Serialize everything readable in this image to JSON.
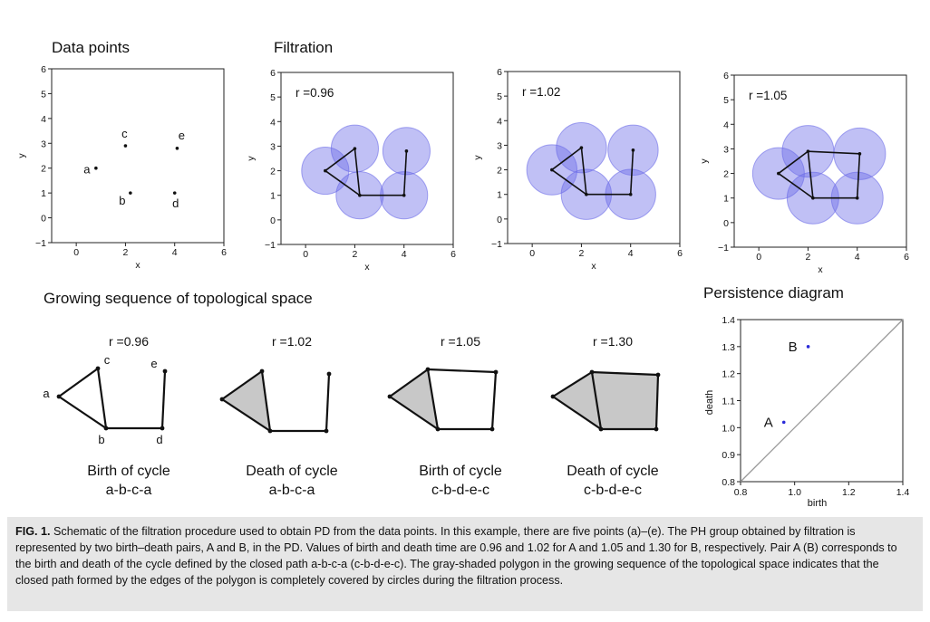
{
  "panels": {
    "data_points_title": "Data points",
    "filtration_title": "Filtration",
    "sequence_title": "Growing sequence of topological space",
    "persistence_title": "Persistence diagram"
  },
  "filtration_labels": [
    "r =0.96",
    "r =1.02",
    "r =1.05"
  ],
  "sequence": [
    {
      "r": "r =0.96",
      "line1": "Birth of cycle",
      "line2": "a-b-c-a"
    },
    {
      "r": "r =1.02",
      "line1": "Death of cycle",
      "line2": "a-b-c-a"
    },
    {
      "r": "r =1.05",
      "line1": "Birth of cycle",
      "line2": "c-b-d-e-c"
    },
    {
      "r": "r =1.30",
      "line1": "Death of cycle",
      "line2": "c-b-d-e-c"
    }
  ],
  "sequence_point_labels": [
    "a",
    "b",
    "c",
    "d",
    "e"
  ],
  "chart_data": [
    {
      "type": "scatter",
      "title": "Data points",
      "xlabel": "x",
      "ylabel": "y",
      "xlim": [
        -1,
        6
      ],
      "ylim": [
        -1,
        6
      ],
      "xticks": [
        "0",
        "2",
        "4",
        "6"
      ],
      "yticks": [
        "−1",
        "0",
        "1",
        "2",
        "3",
        "4",
        "5",
        "6"
      ],
      "points": [
        {
          "label": "a",
          "x": 0.8,
          "y": 2.0
        },
        {
          "label": "b",
          "x": 2.2,
          "y": 1.0
        },
        {
          "label": "c",
          "x": 2.0,
          "y": 2.9
        },
        {
          "label": "d",
          "x": 4.0,
          "y": 1.0
        },
        {
          "label": "e",
          "x": 4.1,
          "y": 2.8
        }
      ]
    },
    {
      "type": "scatter",
      "title": "Filtration",
      "xlabel": "x",
      "ylabel": "y",
      "annotation": "r =0.96",
      "xlim": [
        -1,
        6
      ],
      "ylim": [
        -1,
        6
      ],
      "xticks": [
        "0",
        "2",
        "4",
        "6"
      ],
      "yticks": [
        "−1",
        "0",
        "1",
        "2",
        "3",
        "4",
        "5",
        "6"
      ],
      "radius": 0.96
    },
    {
      "type": "scatter",
      "xlabel": "x",
      "ylabel": "y",
      "annotation": "r =1.02",
      "xlim": [
        -1,
        6
      ],
      "ylim": [
        -1,
        6
      ],
      "xticks": [
        "0",
        "2",
        "4",
        "6"
      ],
      "yticks": [
        "−1",
        "0",
        "1",
        "2",
        "3",
        "4",
        "5",
        "6"
      ],
      "radius": 1.02
    },
    {
      "type": "scatter",
      "xlabel": "x",
      "ylabel": "y",
      "annotation": "r =1.05",
      "xlim": [
        -1,
        6
      ],
      "ylim": [
        -1,
        6
      ],
      "xticks": [
        "0",
        "2",
        "4",
        "6"
      ],
      "yticks": [
        "−1",
        "0",
        "1",
        "2",
        "3",
        "4",
        "5",
        "6"
      ],
      "radius": 1.05
    },
    {
      "type": "scatter",
      "title": "Persistence diagram",
      "xlabel": "birth",
      "ylabel": "death",
      "xlim": [
        0.8,
        1.4
      ],
      "ylim": [
        0.8,
        1.4
      ],
      "xticks": [
        "0.8",
        "1.0",
        "1.2",
        "1.4"
      ],
      "yticks": [
        "0.8",
        "0.9",
        "1.0",
        "1.1",
        "1.2",
        "1.3",
        "1.4"
      ],
      "points": [
        {
          "label": "A",
          "x": 0.96,
          "y": 1.02
        },
        {
          "label": "B",
          "x": 1.05,
          "y": 1.3
        }
      ],
      "diagonal": true
    }
  ],
  "caption": {
    "lead": "FIG. 1.",
    "text": " Schematic of the filtration procedure used to obtain PD from the data points. In this example, there are five points (a)–(e). The PH group obtained by filtration is represented by two birth–death pairs, A and B, in the PD. Values of birth and death time are 0.96 and 1.02 for A and 1.05 and 1.30 for B, respectively. Pair A (B) corresponds to the birth and death of the cycle defined by the closed path a-b-c-a (c-b-d-e-c). The gray-shaded polygon in the growing sequence of the topological space indicates that the closed path formed by the edges of the polygon is completely covered by circles during the filtration process."
  },
  "colors": {
    "circle_fill": "#6a6ae8",
    "pd_point": "#2a2ad8",
    "shade": "#c8c8c8"
  }
}
